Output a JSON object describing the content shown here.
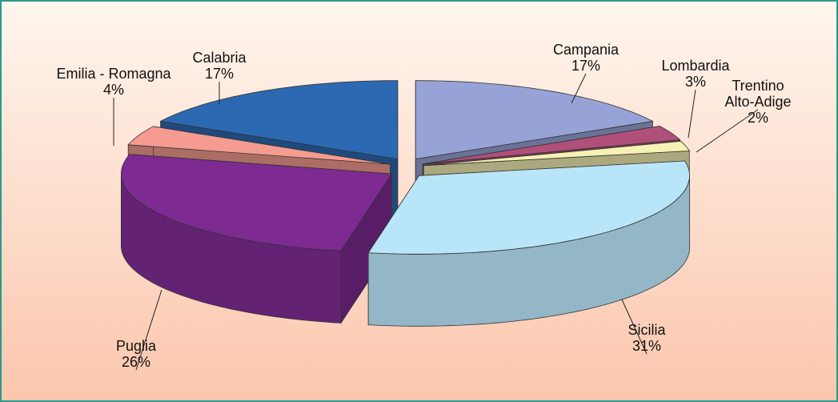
{
  "chart_data": {
    "type": "pie3d",
    "categories": [
      "Campania",
      "Lombardia",
      "Trentino Alto-Adige",
      "Sicilia",
      "Puglia",
      "Emilia - Romagna",
      "Calabria"
    ],
    "values": [
      17,
      3,
      2,
      31,
      26,
      4,
      17
    ],
    "value_labels": [
      "17%",
      "3%",
      "2%",
      "31%",
      "26%",
      "4%",
      "17%"
    ],
    "colors": [
      "#97a3d6",
      "#b0507a",
      "#f6f1b4",
      "#b9e5f9",
      "#7d2a92",
      "#f59b90",
      "#2c69b2"
    ],
    "exploded": true
  }
}
